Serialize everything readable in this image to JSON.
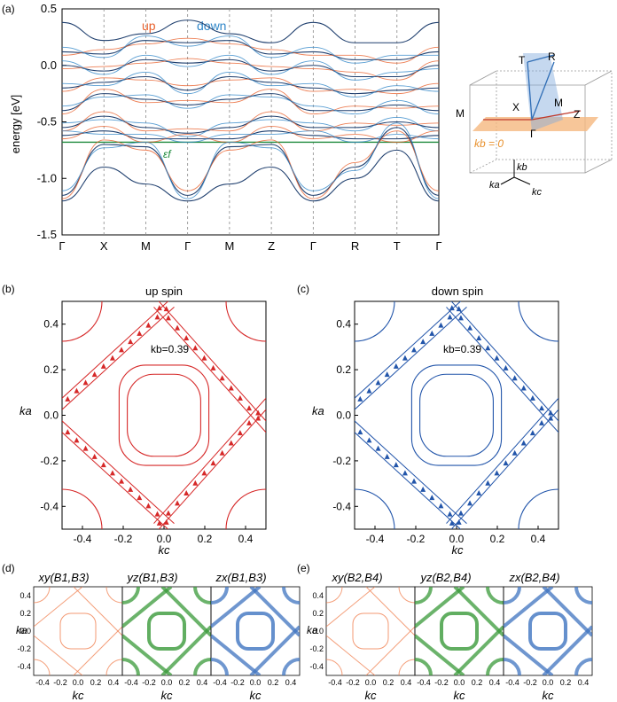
{
  "figure": {
    "panel_labels": [
      "(a)",
      "(b)",
      "(c)",
      "(d)",
      "(e)"
    ],
    "colors": {
      "up": "#e8602c",
      "down": "#2f86c8",
      "bands": "#1f3f6e",
      "fermi": "#1e8a3c",
      "up_fs": "#d62828",
      "down_fs": "#2255aa",
      "xy": "#f08050",
      "yz": "#3a9a3a",
      "zx": "#3f74c0"
    }
  },
  "chart_data": [
    {
      "id": "a",
      "type": "line",
      "title": "",
      "ylabel": "energy [eV]",
      "ylim": [
        -1.5,
        0.5
      ],
      "yticks": [
        "0.5",
        "0.0",
        "-0.5",
        "-1.0",
        "-1.5"
      ],
      "yticks_values": [
        0.5,
        0.0,
        -0.5,
        -1.0,
        -1.5
      ],
      "kpath_labels": [
        "Γ",
        "X",
        "M",
        "Γ",
        "M",
        "Z",
        "Γ",
        "R",
        "T",
        "Γ"
      ],
      "kpath_positions": [
        0,
        1,
        2,
        3,
        4,
        5,
        6,
        7,
        8,
        9
      ],
      "legend": [
        {
          "name": "up",
          "color": "#e8602c"
        },
        {
          "name": "down",
          "color": "#2f86c8"
        }
      ],
      "fermi_label": "εf",
      "fermi_energy": -0.68,
      "series": [
        {
          "name": "band1",
          "values": [
            0.38,
            0.22,
            0.28,
            0.4,
            0.28,
            0.2,
            0.38,
            0.2,
            0.2,
            0.38
          ]
        },
        {
          "name": "band2",
          "values": [
            0.12,
            0.1,
            0.22,
            0.2,
            0.22,
            0.1,
            0.12,
            0.05,
            0.05,
            0.12
          ]
        },
        {
          "name": "band3",
          "values": [
            0.0,
            -0.05,
            0.05,
            0.02,
            0.05,
            -0.05,
            0.0,
            -0.1,
            -0.1,
            0.0
          ]
        },
        {
          "name": "band4",
          "values": [
            -0.2,
            -0.15,
            -0.1,
            -0.22,
            -0.1,
            -0.15,
            -0.2,
            -0.25,
            -0.22,
            -0.2
          ]
        },
        {
          "name": "band5",
          "values": [
            -0.4,
            -0.25,
            -0.3,
            -0.35,
            -0.3,
            -0.25,
            -0.4,
            -0.4,
            -0.35,
            -0.4
          ]
        },
        {
          "name": "band6",
          "values": [
            -0.55,
            -0.45,
            -0.55,
            -0.6,
            -0.55,
            -0.45,
            -0.55,
            -0.55,
            -0.5,
            -0.55
          ]
        },
        {
          "name": "band7",
          "values": [
            -0.62,
            -0.58,
            -0.65,
            -0.65,
            -0.65,
            -0.58,
            -0.62,
            -0.65,
            -0.65,
            -0.62
          ]
        },
        {
          "name": "band8",
          "values": [
            -1.15,
            -0.7,
            -0.72,
            -1.15,
            -0.72,
            -0.7,
            -1.15,
            -0.9,
            -0.55,
            -1.15
          ]
        },
        {
          "name": "band9",
          "values": [
            -1.2,
            -0.9,
            -1.05,
            -1.2,
            -1.05,
            -0.9,
            -1.2,
            -1.0,
            -0.75,
            -1.2
          ]
        }
      ]
    },
    {
      "id": "b",
      "type": "scatter",
      "title": "up spin",
      "xlabel": "kc",
      "ylabel": "ka",
      "xlim": [
        -0.5,
        0.5
      ],
      "ylim": [
        -0.5,
        0.5
      ],
      "xticks": [
        "-0.4",
        "-0.2",
        "0.0",
        "0.2",
        "0.4"
      ],
      "yticks": [
        "0.4",
        "0.2",
        "0.0",
        "-0.2",
        "-0.4"
      ],
      "annotation": "kb=0.39"
    },
    {
      "id": "c",
      "type": "scatter",
      "title": "down spin",
      "xlabel": "kc",
      "ylabel": "ka",
      "xlim": [
        -0.5,
        0.5
      ],
      "ylim": [
        -0.5,
        0.5
      ],
      "xticks": [
        "-0.4",
        "-0.2",
        "0.0",
        "0.2",
        "0.4"
      ],
      "yticks": [
        "0.4",
        "0.2",
        "0.0",
        "-0.2",
        "-0.4"
      ],
      "annotation": "kb=0.39"
    },
    {
      "id": "d",
      "type": "heatmap",
      "subtitles": [
        "xy(B1,B3)",
        "yz(B1,B3)",
        "zx(B1,B3)"
      ],
      "xlabel": "kc",
      "ylabel": "ka",
      "xticks": [
        "-0.4",
        "-0.2",
        "0.0",
        "0.2",
        "0.4"
      ],
      "yticks": [
        "0.4",
        "0.2",
        "0.0",
        "-0.2",
        "-0.4"
      ]
    },
    {
      "id": "e",
      "type": "heatmap",
      "subtitles": [
        "xy(B2,B4)",
        "yz(B2,B4)",
        "zx(B2,B4)"
      ],
      "xlabel": "kc",
      "ylabel": "ka",
      "xticks": [
        "-0.4",
        "-0.2",
        "0.0",
        "0.2",
        "0.4"
      ],
      "yticks": [
        "0.4",
        "0.2",
        "0.0",
        "-0.2",
        "-0.4"
      ]
    }
  ],
  "bz_inset": {
    "points": [
      "T",
      "R",
      "X",
      "M",
      "M",
      "Z",
      "Γ"
    ],
    "plane_label": "kb = 0",
    "axes": [
      "kb",
      "ka",
      "kc"
    ]
  }
}
